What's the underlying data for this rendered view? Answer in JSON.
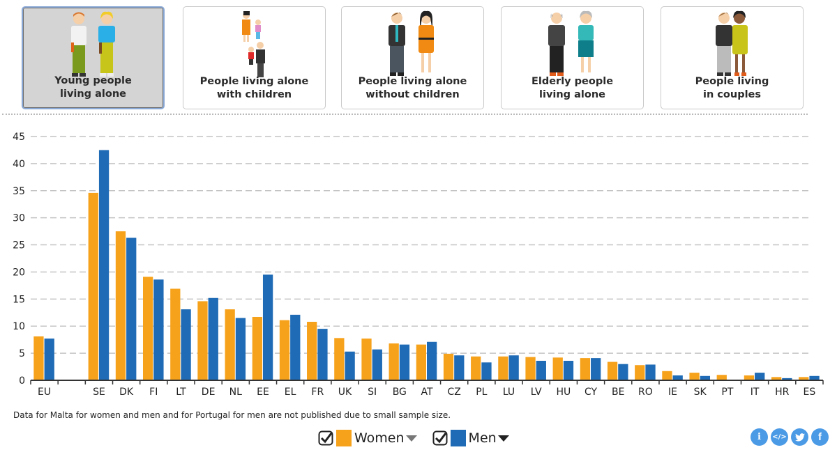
{
  "categories": [
    {
      "label": "Young people\nliving alone",
      "active": true,
      "icon": "young-couple-figures-icon"
    },
    {
      "label": "People living alone\nwith children",
      "active": false,
      "icon": "single-parents-figures-icon"
    },
    {
      "label": "People living alone\nwithout children",
      "active": false,
      "icon": "adults-figures-icon"
    },
    {
      "label": "Elderly people\nliving alone",
      "active": false,
      "icon": "elderly-figures-icon"
    },
    {
      "label": "People living\nin couples",
      "active": false,
      "icon": "couple-figures-icon"
    }
  ],
  "note": "Data for Malta for women and men and for Portugal for men are not published due to small sample size.",
  "legend": {
    "women_label": "Women",
    "men_label": "Men",
    "women_checked": true,
    "men_checked": true
  },
  "colors": {
    "women": "#f7a21b",
    "men": "#1f6bb5",
    "share": "#4a9ae6"
  },
  "share_buttons": [
    {
      "name": "info-button",
      "glyph": "i"
    },
    {
      "name": "embed-button",
      "glyph": "</>"
    },
    {
      "name": "twitter-button",
      "glyph": "t"
    },
    {
      "name": "facebook-button",
      "glyph": "f"
    }
  ],
  "chart_data": {
    "type": "bar",
    "title": "",
    "xlabel": "",
    "ylabel": "",
    "ylim": [
      0,
      45
    ],
    "yticks": [
      0,
      5,
      10,
      15,
      20,
      25,
      30,
      35,
      40,
      45
    ],
    "grid": true,
    "legend_position": "bottom-center",
    "categories": [
      "EU",
      "",
      "SE",
      "DK",
      "FI",
      "LT",
      "DE",
      "NL",
      "EE",
      "EL",
      "FR",
      "UK",
      "SI",
      "BG",
      "AT",
      "CZ",
      "PL",
      "LU",
      "LV",
      "HU",
      "CY",
      "BE",
      "RO",
      "IE",
      "SK",
      "PT",
      "IT",
      "HR",
      "ES"
    ],
    "series": [
      {
        "name": "Women",
        "values": [
          8.1,
          null,
          34.6,
          27.5,
          19.1,
          16.9,
          14.6,
          13.1,
          11.7,
          11.1,
          10.8,
          7.8,
          7.7,
          6.8,
          6.6,
          4.9,
          4.4,
          4.4,
          4.3,
          4.2,
          4.1,
          3.4,
          2.8,
          1.7,
          1.4,
          1.0,
          0.9,
          0.6,
          0.6
        ]
      },
      {
        "name": "Men",
        "values": [
          7.7,
          null,
          42.5,
          26.3,
          18.6,
          13.1,
          15.2,
          11.5,
          19.5,
          12.1,
          9.5,
          5.3,
          5.7,
          6.6,
          7.1,
          4.6,
          3.3,
          4.6,
          3.6,
          3.6,
          4.1,
          3.0,
          2.9,
          0.9,
          0.8,
          null,
          1.4,
          0.4,
          0.8
        ]
      }
    ]
  }
}
